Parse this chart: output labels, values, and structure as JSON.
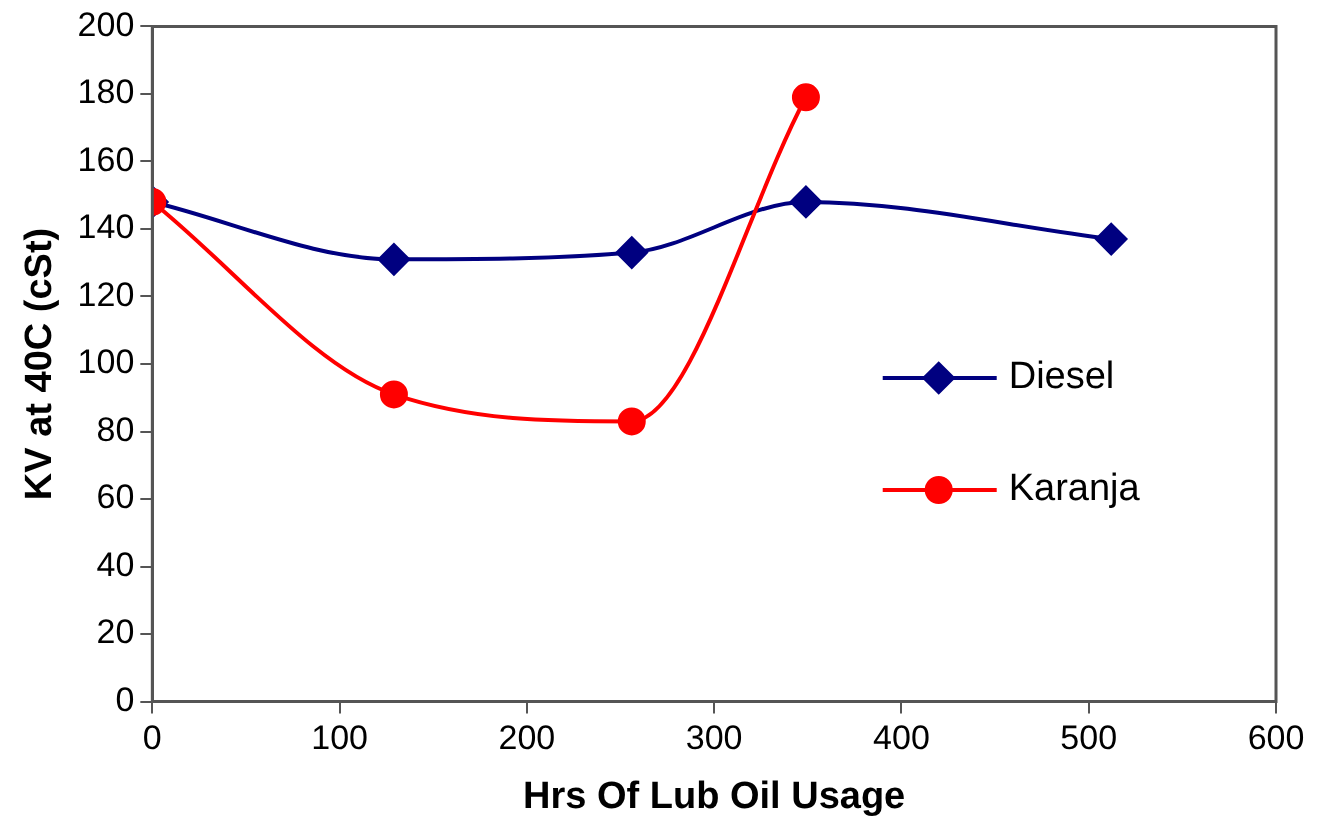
{
  "chart_data": {
    "type": "line",
    "xlabel": "Hrs Of Lub Oil Usage",
    "ylabel": "KV at 40C (cSt)",
    "series": [
      {
        "name": "Diesel",
        "color": "#000080",
        "marker": "diamond",
        "x": [
          0,
          129,
          256,
          349,
          512
        ],
        "values": [
          148,
          131,
          133,
          148,
          137
        ]
      },
      {
        "name": "Karanja",
        "color": "#ff0000",
        "marker": "circle",
        "x": [
          0,
          129,
          256,
          349
        ],
        "values": [
          148,
          91,
          83,
          179
        ]
      }
    ],
    "xlim": [
      0,
      600
    ],
    "xticks": [
      0,
      100,
      200,
      300,
      400,
      500,
      600
    ],
    "ylim": [
      0,
      200
    ],
    "yticks": [
      0,
      20,
      40,
      60,
      80,
      100,
      120,
      140,
      160,
      180,
      200
    ],
    "grid": false,
    "legend": "right"
  }
}
